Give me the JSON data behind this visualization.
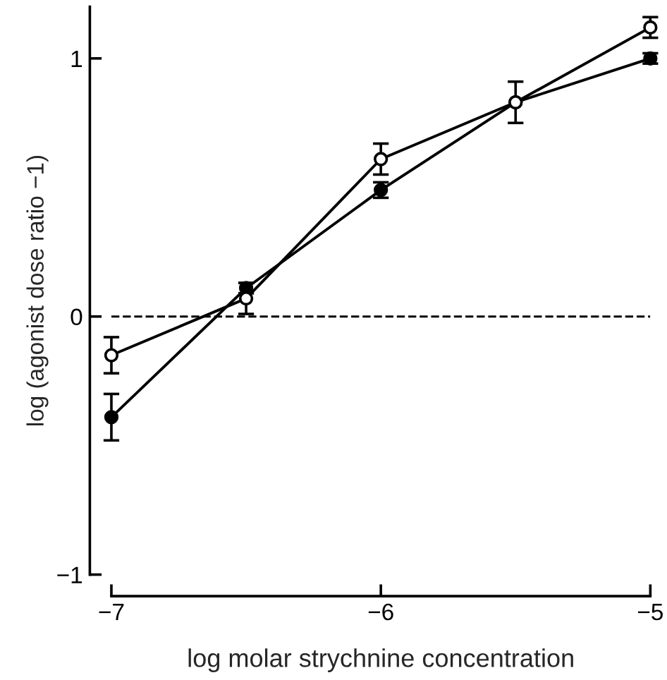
{
  "chart_data": {
    "type": "line",
    "xlabel": "log molar strychnine concentration",
    "ylabel": "log (agonist dose ratio −1)",
    "x": [
      -7,
      -6.5,
      -6,
      -5.5,
      -5
    ],
    "series": [
      {
        "color": "#000000",
        "marker": "circle",
        "values": [
          -0.15,
          0.07,
          0.61,
          0.83,
          1.12
        ],
        "errors": [
          0.07,
          0.06,
          0.06,
          0.08,
          0.04
        ]
      },
      {
        "color": "#000000",
        "marker": "circle",
        "values": [
          -0.39,
          0.11,
          0.49,
          0.83,
          1.0
        ],
        "errors": [
          0.09,
          0.02,
          0.03,
          null,
          0.02
        ]
      }
    ],
    "xlim": [
      -7,
      -5
    ],
    "ylim": [
      -1,
      1.2
    ],
    "xticks": [
      -7,
      -6,
      -5
    ],
    "yticks": [
      -1,
      0,
      1
    ],
    "ref_lines": [
      {
        "axis": "y",
        "value": 0,
        "line_style": "dashed",
        "color": "#000000"
      }
    ],
    "grid": false,
    "legend": false,
    "line_style": "solid"
  }
}
